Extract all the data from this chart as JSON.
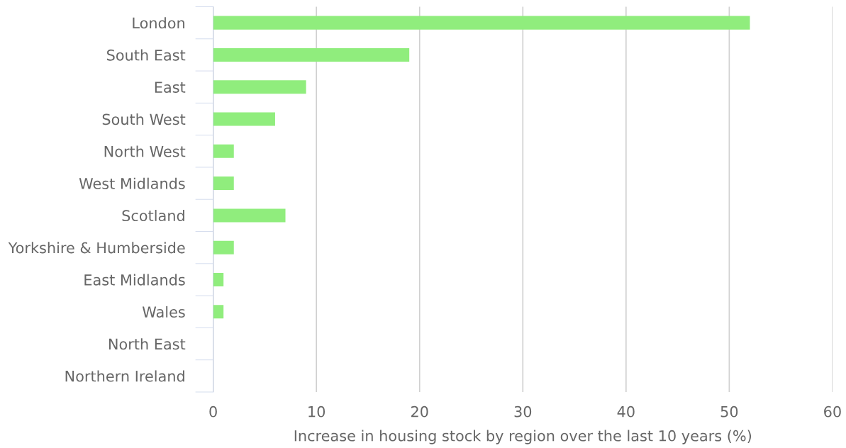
{
  "chart_data": {
    "type": "bar",
    "orientation": "horizontal",
    "categories": [
      "London",
      "South East",
      "East",
      "South West",
      "North West",
      "West Midlands",
      "Scotland",
      "Yorkshire & Humberside",
      "East Midlands",
      "Wales",
      "North East",
      "Northern Ireland"
    ],
    "values": [
      52,
      19,
      9,
      6,
      2,
      2,
      7,
      2,
      1,
      1,
      0,
      0
    ],
    "color": "#90ed7d",
    "xlim": [
      0,
      60
    ],
    "xticks": [
      0,
      10,
      20,
      30,
      40,
      50,
      60
    ],
    "xlabel": "Increase in housing stock by region over the last 10 years (%)",
    "grid": "x"
  }
}
